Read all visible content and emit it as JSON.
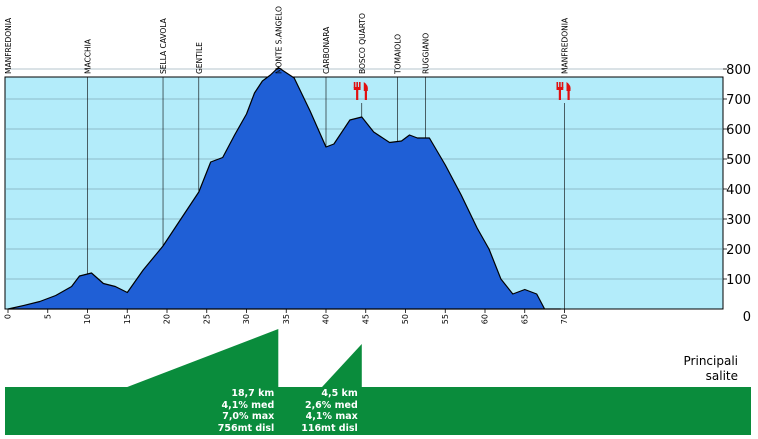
{
  "chart_data": {
    "type": "area",
    "xlim": [
      0,
      70
    ],
    "ylim": [
      0,
      850
    ],
    "x_ticks": [
      0,
      5,
      10,
      15,
      20,
      25,
      30,
      35,
      40,
      45,
      50,
      55,
      60,
      65,
      70
    ],
    "y_ticks": [
      100,
      200,
      300,
      400,
      500,
      600,
      700,
      800
    ],
    "y_zero_label": "0",
    "grid": true,
    "colors": {
      "fill": "#1f5fd6",
      "plot_bg": "#b3ecfa",
      "climb": "#0a8c3c",
      "food_icon": "#e01010"
    },
    "series": [
      {
        "x": [
          0,
          2,
          4,
          6,
          8,
          9,
          10.5,
          12,
          13.5,
          15,
          17,
          19.5,
          21.5,
          24,
          25.5,
          27,
          28.5,
          30,
          31,
          32,
          33,
          34,
          36,
          38,
          40,
          41,
          43,
          44.5,
          46,
          48,
          49.5,
          50.5,
          51.5,
          53,
          55,
          57,
          59,
          60.5,
          62,
          63.5,
          65,
          66.5,
          67.5,
          69.5
        ],
        "y": [
          0,
          12,
          25,
          45,
          75,
          110,
          120,
          85,
          75,
          55,
          130,
          210,
          290,
          390,
          490,
          505,
          580,
          650,
          720,
          760,
          780,
          805,
          770,
          660,
          540,
          550,
          630,
          640,
          590,
          555,
          560,
          580,
          570,
          570,
          480,
          380,
          270,
          200,
          100,
          50,
          65,
          50,
          0,
          0
        ]
      }
    ],
    "places": [
      {
        "name": "MANFREDONIA",
        "km": 0,
        "food": false
      },
      {
        "name": "MACCHIA",
        "km": 10,
        "food": false
      },
      {
        "name": "SELLA CAVOLA",
        "km": 19.5,
        "food": false
      },
      {
        "name": "GENTILE",
        "km": 24,
        "food": false
      },
      {
        "name": "MONTE S.ANGELO",
        "km": 34,
        "food": false
      },
      {
        "name": "CARBONARA",
        "km": 40,
        "food": false
      },
      {
        "name": "BOSCO QUARTO",
        "km": 44.5,
        "food": true
      },
      {
        "name": "TOMAIOLO",
        "km": 49,
        "food": false
      },
      {
        "name": "RUGGIANO",
        "km": 52.5,
        "food": false
      },
      {
        "name": "MANFREDONIA",
        "km": 70,
        "food": true
      }
    ],
    "climbs": [
      {
        "km_start": 15,
        "km_end": 34,
        "stats": [
          "18,7 km",
          "4,1% med",
          "7,0% max",
          "756mt disl"
        ]
      },
      {
        "km_start": 39.5,
        "km_end": 44.5,
        "stats": [
          "4,5 km",
          "2,6% med",
          "4,1% max",
          "116mt disl"
        ]
      }
    ]
  },
  "climbs_heading": [
    "Principali",
    "salite"
  ]
}
